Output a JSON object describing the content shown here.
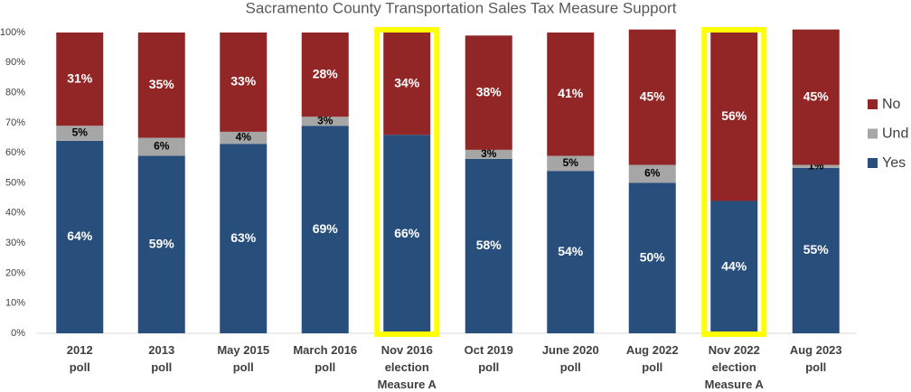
{
  "chart_data": {
    "type": "stacked_bar",
    "title": "Sacramento County Transportation Sales Tax Measure Support",
    "categories": [
      [
        "2012",
        "poll"
      ],
      [
        "2013",
        "poll"
      ],
      [
        "May 2015",
        "poll"
      ],
      [
        "March 2016",
        "poll"
      ],
      [
        "Nov 2016",
        "election",
        "Measure A"
      ],
      [
        "Oct 2019",
        "poll"
      ],
      [
        "June 2020",
        "poll"
      ],
      [
        "Aug 2022",
        "poll"
      ],
      [
        "Nov 2022",
        "election",
        "Measure A"
      ],
      [
        "Aug 2023",
        "poll"
      ]
    ],
    "series": [
      {
        "name": "Yes",
        "color": "#284f7c",
        "values": [
          64,
          59,
          63,
          69,
          66,
          58,
          54,
          50,
          44,
          55
        ],
        "value_labels": [
          "64%",
          "59%",
          "63%",
          "69%",
          "66%",
          "58%",
          "54%",
          "50%",
          "44%",
          "55%"
        ]
      },
      {
        "name": "Und",
        "color": "#a6a6a6",
        "values": [
          5,
          6,
          4,
          3,
          null,
          3,
          5,
          6,
          null,
          1
        ],
        "value_labels": [
          "5%",
          "6%",
          "4%",
          "3%",
          null,
          "3%",
          "5%",
          "6%",
          null,
          "1%"
        ]
      },
      {
        "name": "No",
        "color": "#922626",
        "values": [
          31,
          35,
          33,
          28,
          34,
          38,
          41,
          45,
          56,
          45
        ],
        "value_labels": [
          "31%",
          "35%",
          "33%",
          "28%",
          "34%",
          "38%",
          "41%",
          "45%",
          "56%",
          "45%"
        ]
      }
    ],
    "highlight": [
      4,
      8
    ],
    "highlight_color": "#ffff00",
    "ylim": [
      0,
      100
    ],
    "yticks": [
      {
        "value": 0,
        "label": "0%"
      },
      {
        "value": 10,
        "label": "10%"
      },
      {
        "value": 20,
        "label": "20%"
      },
      {
        "value": 30,
        "label": "30%"
      },
      {
        "value": 40,
        "label": "40%"
      },
      {
        "value": 50,
        "label": "50%"
      },
      {
        "value": 60,
        "label": "60%"
      },
      {
        "value": 70,
        "label": "70%"
      },
      {
        "value": 80,
        "label": "80%"
      },
      {
        "value": 90,
        "label": "90%"
      },
      {
        "value": 100,
        "label": "100%"
      }
    ],
    "grid": false,
    "legend": "right"
  }
}
